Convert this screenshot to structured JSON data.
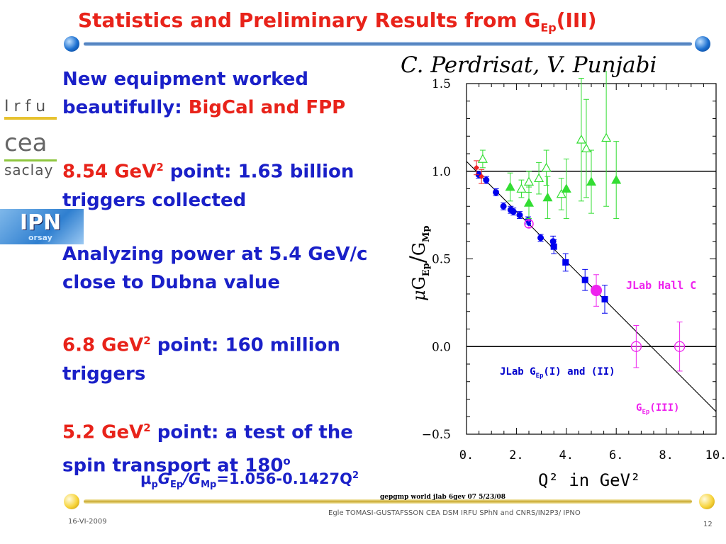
{
  "slide": {
    "title_main": "Statistics and Preliminary Results from G",
    "title_sub": "Ep",
    "title_end": "(III)",
    "authors": "C. Perdrisat, V. Punjabi",
    "bullet1_blue": "New equipment worked beautifully: ",
    "bullet1_red": "BigCal and FPP",
    "bullet2_red": "8.54 GeV",
    "bullet2_sup": "2",
    "bullet2_blue": " point: 1.63 billion triggers collected",
    "bullet3": "Analyzing power at 5.4 GeV/c close to Dubna value",
    "bullet4_red": "6.8 GeV",
    "bullet4_sup": "2",
    "bullet4_blue": " point: 160 million triggers",
    "bullet5_red": "5.2 GeV",
    "bullet5_sup": "2",
    "bullet5_blue": " point: a test of the spin transport at 180",
    "bullet5_sup2": "o",
    "formula": {
      "mu": "μ",
      "p": "p",
      "G1": "G",
      "Ep": "Ep",
      "slash": "/G",
      "Mp": "Mp",
      "rest": "=1.056-0.1427Q",
      "sup": "2"
    },
    "footer_caption": "gepgmp world jlab 6gev 07 5/23/08",
    "footer_date": "16-VI-2009",
    "footer_author": "Egle TOMASI-GUSTAFSSON     CEA DSM IRFU SPhN and   CNRS/IN2P3/ IPNO",
    "page_number": "12"
  },
  "logos": {
    "irfu": "Irfu",
    "cea": "cea",
    "saclay": "saclay",
    "ipn": "IPN",
    "orsay": "orsay"
  },
  "chart_data": {
    "type": "scatter",
    "xlabel": "Q² in GeV²",
    "ylabel": "μG_Ep/G_Mp",
    "xlim": [
      0,
      10
    ],
    "ylim": [
      -0.5,
      1.5
    ],
    "x_ticks": [
      "0.",
      "2.",
      "4.",
      "6.",
      "8.",
      "10."
    ],
    "y_ticks": [
      "1.5",
      "1.0",
      "0.5",
      "0.0",
      "−0.5"
    ],
    "annotations": {
      "hallc": "JLab Hall C",
      "gep12_a": "JLab G",
      "gep12_b": "Ep",
      "gep12_c": "(I) and (II)",
      "gep3_a": "G",
      "gep3_b": "Ep",
      "gep3_c": "(III)"
    },
    "fit_line": {
      "intercept": 1.056,
      "slope": -0.1427
    },
    "colors": {
      "blue": "#0000ee",
      "green": "#33dd33",
      "magenta": "#ee22ee",
      "red": "#ee2222"
    },
    "series": [
      {
        "marker": "circle",
        "color": "#0000ee",
        "points": [
          {
            "x": 0.49,
            "y": 0.98,
            "e": 0.02
          },
          {
            "x": 0.79,
            "y": 0.95,
            "e": 0.02
          },
          {
            "x": 1.18,
            "y": 0.88,
            "e": 0.02
          },
          {
            "x": 1.48,
            "y": 0.8,
            "e": 0.02
          },
          {
            "x": 1.77,
            "y": 0.78,
            "e": 0.02
          },
          {
            "x": 1.88,
            "y": 0.77,
            "e": 0.02
          },
          {
            "x": 2.13,
            "y": 0.75,
            "e": 0.02
          },
          {
            "x": 2.47,
            "y": 0.72,
            "e": 0.02
          },
          {
            "x": 2.97,
            "y": 0.62,
            "e": 0.02
          },
          {
            "x": 3.47,
            "y": 0.6,
            "e": 0.03
          }
        ]
      },
      {
        "marker": "square",
        "color": "#0000ee",
        "points": [
          {
            "x": 3.5,
            "y": 0.57,
            "e": 0.04
          },
          {
            "x": 3.97,
            "y": 0.48,
            "e": 0.05
          },
          {
            "x": 4.75,
            "y": 0.38,
            "e": 0.06
          },
          {
            "x": 5.54,
            "y": 0.27,
            "e": 0.08
          }
        ]
      },
      {
        "marker": "circle-big",
        "color": "#ee22ee",
        "points": [
          {
            "x": 2.5,
            "y": 0.7,
            "e": 0.02
          },
          {
            "x": 5.2,
            "y": 0.32,
            "e": 0.09
          }
        ]
      },
      {
        "marker": "circle-open-cross",
        "color": "#ee22ee",
        "points": [
          {
            "x": 6.8,
            "y": 0.0,
            "e": 0.12
          },
          {
            "x": 8.54,
            "y": 0.0,
            "e": 0.14
          }
        ]
      },
      {
        "marker": "triangle-open",
        "color": "#33dd33",
        "points": [
          {
            "x": 0.65,
            "y": 1.07,
            "e": 0.05
          },
          {
            "x": 2.2,
            "y": 0.9,
            "e": 0.05
          },
          {
            "x": 2.5,
            "y": 0.94,
            "e": 0.06
          },
          {
            "x": 2.9,
            "y": 0.96,
            "e": 0.09
          },
          {
            "x": 3.2,
            "y": 1.02,
            "e": 0.1
          },
          {
            "x": 3.8,
            "y": 0.87,
            "e": 0.09
          },
          {
            "x": 4.6,
            "y": 1.18,
            "e": 0.35
          },
          {
            "x": 4.8,
            "y": 1.13,
            "e": 0.28
          },
          {
            "x": 5.6,
            "y": 1.19,
            "e": 0.39
          }
        ]
      },
      {
        "marker": "triangle",
        "color": "#33dd33",
        "points": [
          {
            "x": 1.75,
            "y": 0.91,
            "e": 0.08
          },
          {
            "x": 2.5,
            "y": 0.82,
            "e": 0.09
          },
          {
            "x": 3.25,
            "y": 0.85,
            "e": 0.12
          },
          {
            "x": 4.0,
            "y": 0.9,
            "e": 0.17
          },
          {
            "x": 5.0,
            "y": 0.94,
            "e": 0.18
          },
          {
            "x": 6.0,
            "y": 0.95,
            "e": 0.22
          }
        ]
      },
      {
        "marker": "diamond",
        "color": "#ee2222",
        "points": [
          {
            "x": 0.4,
            "y": 1.02,
            "e": 0.04
          },
          {
            "x": 0.6,
            "y": 0.97,
            "e": 0.04
          }
        ]
      }
    ]
  }
}
